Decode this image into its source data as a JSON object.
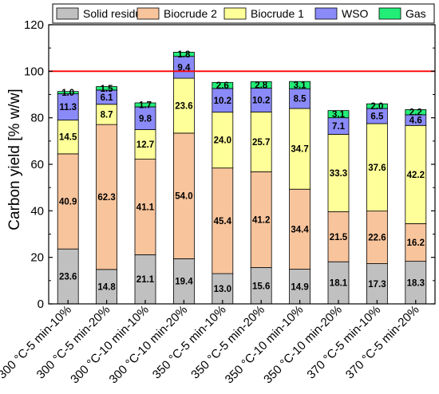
{
  "chart_data": {
    "type": "bar",
    "stacked": true,
    "ylabel": "Carbon yield [% w/w]",
    "xlabel": "",
    "ylim": [
      0,
      120
    ],
    "yticks": [
      0,
      20,
      40,
      60,
      80,
      100,
      120
    ],
    "grid": false,
    "legend_position": "top",
    "reference_line": {
      "y": 100,
      "color": "#ff0000"
    },
    "categories": [
      "300 °C-5 min-10%",
      "300 °C-5 min-20%",
      "300 °C-10 min-10%",
      "300 °C-10 min-20%",
      "350 °C-5 min-10%",
      "350 °C-5 min-20%",
      "350 °C-10 min-10%",
      "350 °C-10 min-20%",
      "370 °C-5 min-10%",
      "370 °C-5 min-20%"
    ],
    "series": [
      {
        "name": "Solid residue",
        "color": "#c0c0c0",
        "values": [
          23.6,
          14.8,
          21.1,
          19.4,
          13.0,
          15.6,
          14.9,
          18.1,
          17.3,
          18.3
        ]
      },
      {
        "name": "Biocrude 2",
        "color": "#f8c49c",
        "values": [
          40.9,
          62.3,
          41.1,
          54.0,
          45.4,
          41.2,
          34.4,
          21.5,
          22.6,
          16.2
        ]
      },
      {
        "name": "Biocrude 1",
        "color": "#ffff99",
        "values": [
          14.5,
          8.7,
          12.7,
          23.6,
          24.0,
          25.7,
          34.7,
          33.3,
          37.6,
          42.2
        ]
      },
      {
        "name": "WSO",
        "color": "#8a8af8",
        "values": [
          11.3,
          6.1,
          9.8,
          9.4,
          10.2,
          10.2,
          8.5,
          7.1,
          6.5,
          4.6
        ]
      },
      {
        "name": "Gas",
        "color": "#22ee77",
        "values": [
          1.0,
          1.5,
          1.7,
          1.8,
          2.6,
          2.8,
          3.1,
          3.1,
          2.0,
          2.2
        ]
      }
    ]
  }
}
